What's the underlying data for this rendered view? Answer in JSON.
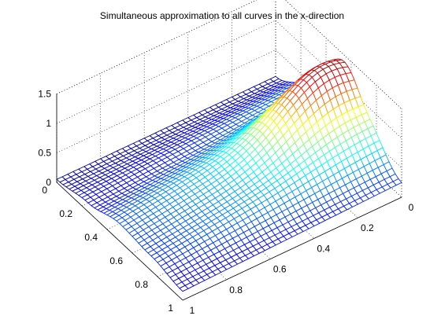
{
  "chart_data": {
    "type": "mesh3d",
    "title": "Simultaneous approximation to all curves in the x-direction",
    "colormap": "jet",
    "grid": true,
    "box": true,
    "x_ticks": [
      "0",
      "0.2",
      "0.4",
      "0.6",
      "0.8",
      "1"
    ],
    "y_ticks": [
      "0",
      "0.2",
      "0.4",
      "0.6",
      "0.8",
      "1"
    ],
    "z_ticks": [
      "0",
      "0.5",
      "1",
      "1.5"
    ],
    "xlim": [
      0,
      1
    ],
    "ylim": [
      0,
      1
    ],
    "zlim": [
      0,
      1.5
    ],
    "grid_points": 41,
    "surface_peak": {
      "x": 0.1,
      "y": 0.55,
      "z": 1.5
    },
    "edge_profiles": {
      "y_at_0": {
        "y": [
          0,
          0.25,
          0.5,
          0.75,
          1
        ],
        "z": [
          0.05,
          0.35,
          0.75,
          0.65,
          0.25
        ]
      },
      "y_at_1": {
        "y": [
          0,
          0.25,
          0.5,
          0.75,
          1
        ],
        "z": [
          0.05,
          0.15,
          0.3,
          0.25,
          0.15
        ]
      }
    }
  }
}
